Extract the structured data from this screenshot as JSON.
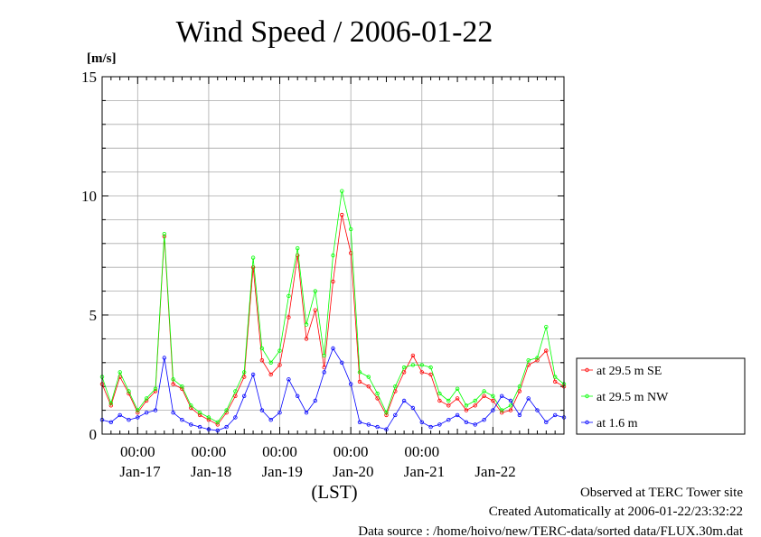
{
  "chart_data": {
    "type": "line",
    "title": "Wind Speed / 2006-01-22",
    "ylabel": "[m/s]",
    "xlabel": "(LST)",
    "ylim": [
      0,
      15
    ],
    "yticks": [
      0,
      5,
      10,
      15
    ],
    "xlim": [
      "2006-01-16 12:00",
      "2006-01-22 24:00"
    ],
    "x_tick_time_labels": [
      "00:00",
      "00:00",
      "00:00",
      "00:00",
      "00:00"
    ],
    "x_day_labels": [
      "Jan-17",
      "Jan-18",
      "Jan-19",
      "Jan-20",
      "Jan-21",
      "Jan-22"
    ],
    "grid": true,
    "legend_position": "right",
    "series": [
      {
        "name": "at 29.5 m SE",
        "color": "#ff0000",
        "times": [
          "2006-01-16 12:00",
          "2006-01-16 15:00",
          "2006-01-16 18:00",
          "2006-01-16 21:00",
          "2006-01-17 00:00",
          "2006-01-17 03:00",
          "2006-01-17 06:00",
          "2006-01-17 09:00",
          "2006-01-17 12:00",
          "2006-01-17 15:00",
          "2006-01-17 18:00",
          "2006-01-17 21:00",
          "2006-01-18 00:00",
          "2006-01-18 03:00",
          "2006-01-18 06:00",
          "2006-01-18 09:00",
          "2006-01-18 12:00",
          "2006-01-18 15:00",
          "2006-01-18 18:00",
          "2006-01-18 21:00",
          "2006-01-19 00:00",
          "2006-01-19 03:00",
          "2006-01-19 06:00",
          "2006-01-19 09:00",
          "2006-01-19 12:00",
          "2006-01-19 15:00",
          "2006-01-19 18:00",
          "2006-01-19 21:00",
          "2006-01-20 00:00",
          "2006-01-20 03:00",
          "2006-01-20 06:00",
          "2006-01-20 09:00",
          "2006-01-20 12:00",
          "2006-01-20 15:00",
          "2006-01-20 18:00",
          "2006-01-20 21:00",
          "2006-01-21 00:00",
          "2006-01-21 03:00",
          "2006-01-21 06:00",
          "2006-01-21 09:00",
          "2006-01-21 12:00",
          "2006-01-21 15:00",
          "2006-01-21 18:00",
          "2006-01-21 21:00",
          "2006-01-22 00:00",
          "2006-01-22 03:00",
          "2006-01-22 06:00",
          "2006-01-22 09:00",
          "2006-01-22 12:00",
          "2006-01-22 15:00",
          "2006-01-22 18:00",
          "2006-01-22 21:00",
          "2006-01-22 24:00"
        ],
        "values": [
          2.1,
          1.2,
          2.4,
          1.7,
          0.9,
          1.4,
          1.8,
          8.3,
          2.1,
          1.9,
          1.1,
          0.8,
          0.6,
          0.4,
          0.9,
          1.6,
          2.4,
          7.0,
          3.1,
          2.5,
          2.9,
          4.9,
          7.5,
          4.0,
          5.2,
          2.8,
          6.4,
          9.2,
          7.6,
          2.2,
          2.0,
          1.5,
          0.8,
          1.8,
          2.6,
          3.3,
          2.6,
          2.5,
          1.4,
          1.2,
          1.5,
          1.0,
          1.2,
          1.6,
          1.4,
          0.9,
          1.0,
          1.8,
          2.9,
          3.1,
          3.5,
          2.2,
          2.0
        ]
      },
      {
        "name": "at 29.5 m NW",
        "color": "#00ff00",
        "times": [
          "2006-01-16 12:00",
          "2006-01-16 15:00",
          "2006-01-16 18:00",
          "2006-01-16 21:00",
          "2006-01-17 00:00",
          "2006-01-17 03:00",
          "2006-01-17 06:00",
          "2006-01-17 09:00",
          "2006-01-17 12:00",
          "2006-01-17 15:00",
          "2006-01-17 18:00",
          "2006-01-17 21:00",
          "2006-01-18 00:00",
          "2006-01-18 03:00",
          "2006-01-18 06:00",
          "2006-01-18 09:00",
          "2006-01-18 12:00",
          "2006-01-18 15:00",
          "2006-01-18 18:00",
          "2006-01-18 21:00",
          "2006-01-19 00:00",
          "2006-01-19 03:00",
          "2006-01-19 06:00",
          "2006-01-19 09:00",
          "2006-01-19 12:00",
          "2006-01-19 15:00",
          "2006-01-19 18:00",
          "2006-01-19 21:00",
          "2006-01-20 00:00",
          "2006-01-20 03:00",
          "2006-01-20 06:00",
          "2006-01-20 09:00",
          "2006-01-20 12:00",
          "2006-01-20 15:00",
          "2006-01-20 18:00",
          "2006-01-20 21:00",
          "2006-01-21 00:00",
          "2006-01-21 03:00",
          "2006-01-21 06:00",
          "2006-01-21 09:00",
          "2006-01-21 12:00",
          "2006-01-21 15:00",
          "2006-01-21 18:00",
          "2006-01-21 21:00",
          "2006-01-22 00:00",
          "2006-01-22 03:00",
          "2006-01-22 06:00",
          "2006-01-22 09:00",
          "2006-01-22 12:00",
          "2006-01-22 15:00",
          "2006-01-22 18:00",
          "2006-01-22 21:00",
          "2006-01-22 24:00"
        ],
        "values": [
          2.4,
          1.3,
          2.6,
          1.8,
          1.0,
          1.5,
          1.9,
          8.4,
          2.3,
          2.0,
          1.2,
          0.9,
          0.7,
          0.5,
          1.0,
          1.8,
          2.6,
          7.4,
          3.6,
          3.0,
          3.5,
          5.8,
          7.8,
          4.6,
          6.0,
          3.3,
          7.5,
          10.2,
          8.6,
          2.6,
          2.4,
          1.7,
          0.9,
          2.0,
          2.8,
          2.9,
          2.9,
          2.8,
          1.7,
          1.4,
          1.9,
          1.2,
          1.4,
          1.8,
          1.6,
          1.0,
          1.2,
          2.0,
          3.1,
          3.2,
          4.5,
          2.4,
          2.1
        ]
      },
      {
        "name": "at 1.6 m",
        "color": "#0000ff",
        "times": [
          "2006-01-16 12:00",
          "2006-01-16 15:00",
          "2006-01-16 18:00",
          "2006-01-16 21:00",
          "2006-01-17 00:00",
          "2006-01-17 03:00",
          "2006-01-17 06:00",
          "2006-01-17 09:00",
          "2006-01-17 12:00",
          "2006-01-17 15:00",
          "2006-01-17 18:00",
          "2006-01-17 21:00",
          "2006-01-18 00:00",
          "2006-01-18 03:00",
          "2006-01-18 06:00",
          "2006-01-18 09:00",
          "2006-01-18 12:00",
          "2006-01-18 15:00",
          "2006-01-18 18:00",
          "2006-01-18 21:00",
          "2006-01-19 00:00",
          "2006-01-19 03:00",
          "2006-01-19 06:00",
          "2006-01-19 09:00",
          "2006-01-19 12:00",
          "2006-01-19 15:00",
          "2006-01-19 18:00",
          "2006-01-19 21:00",
          "2006-01-20 00:00",
          "2006-01-20 03:00",
          "2006-01-20 06:00",
          "2006-01-20 09:00",
          "2006-01-20 12:00",
          "2006-01-20 15:00",
          "2006-01-20 18:00",
          "2006-01-20 21:00",
          "2006-01-21 00:00",
          "2006-01-21 03:00",
          "2006-01-21 06:00",
          "2006-01-21 09:00",
          "2006-01-21 12:00",
          "2006-01-21 15:00",
          "2006-01-21 18:00",
          "2006-01-21 21:00",
          "2006-01-22 00:00",
          "2006-01-22 03:00",
          "2006-01-22 06:00",
          "2006-01-22 09:00",
          "2006-01-22 12:00",
          "2006-01-22 15:00",
          "2006-01-22 18:00",
          "2006-01-22 21:00",
          "2006-01-22 24:00"
        ],
        "values": [
          0.6,
          0.5,
          0.8,
          0.6,
          0.7,
          0.9,
          1.0,
          3.2,
          0.9,
          0.6,
          0.4,
          0.3,
          0.2,
          0.15,
          0.3,
          0.7,
          1.6,
          2.5,
          1.0,
          0.6,
          0.9,
          2.3,
          1.6,
          0.9,
          1.4,
          2.6,
          3.6,
          3.0,
          2.1,
          0.5,
          0.4,
          0.3,
          0.2,
          0.8,
          1.4,
          1.1,
          0.5,
          0.3,
          0.4,
          0.6,
          0.8,
          0.5,
          0.4,
          0.6,
          1.0,
          1.6,
          1.4,
          0.8,
          1.5,
          1.0,
          0.5,
          0.8,
          0.7
        ]
      }
    ]
  },
  "footer": {
    "observed": "Observed at TERC Tower site",
    "created": "Created Automatically at 2006-01-22/23:32:22",
    "source": "Data source : /home/hoivo/new/TERC-data/sorted  data/FLUX.30m.dat"
  }
}
